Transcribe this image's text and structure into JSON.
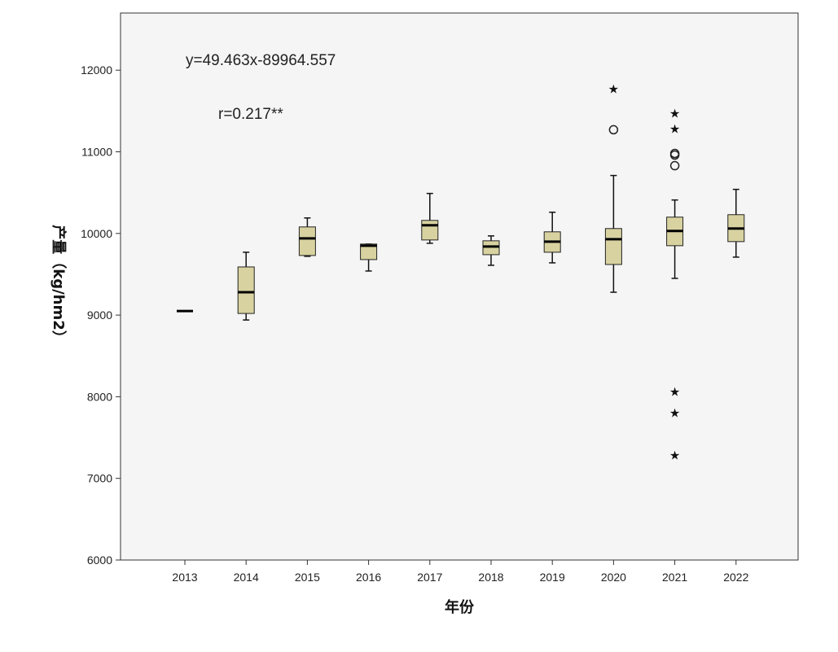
{
  "chart_data": {
    "type": "box",
    "xlabel": "年份",
    "ylabel": "产量（kg/hm2）",
    "ylim": [
      6000,
      12700
    ],
    "yticks": [
      6000,
      7000,
      8000,
      9000,
      10000,
      11000,
      12000
    ],
    "grid": false,
    "background": "#f5f5f5",
    "box_fill": "#d8d2a0",
    "annotations": [
      {
        "text": "y=49.463x-89964.557"
      },
      {
        "text": "r=0.217**"
      }
    ],
    "categories": [
      "2013",
      "2014",
      "2015",
      "2016",
      "2017",
      "2018",
      "2019",
      "2020",
      "2021",
      "2022"
    ],
    "boxes": [
      {
        "year": "2013",
        "whisker_low": 9050,
        "q1": 9050,
        "median": 9050,
        "q3": 9050,
        "whisker_high": 9050,
        "outliers": [],
        "extremes": []
      },
      {
        "year": "2014",
        "whisker_low": 8940,
        "q1": 9020,
        "median": 9280,
        "q3": 9590,
        "whisker_high": 9770,
        "outliers": [],
        "extremes": []
      },
      {
        "year": "2015",
        "whisker_low": 9720,
        "q1": 9730,
        "median": 9940,
        "q3": 10080,
        "whisker_high": 10190,
        "outliers": [],
        "extremes": []
      },
      {
        "year": "2016",
        "whisker_low": 9540,
        "q1": 9680,
        "median": 9850,
        "q3": 9870,
        "whisker_high": 9870,
        "outliers": [],
        "extremes": []
      },
      {
        "year": "2017",
        "whisker_low": 9880,
        "q1": 9920,
        "median": 10100,
        "q3": 10160,
        "whisker_high": 10490,
        "outliers": [],
        "extremes": []
      },
      {
        "year": "2018",
        "whisker_low": 9610,
        "q1": 9740,
        "median": 9840,
        "q3": 9910,
        "whisker_high": 9970,
        "outliers": [],
        "extremes": []
      },
      {
        "year": "2019",
        "whisker_low": 9640,
        "q1": 9770,
        "median": 9900,
        "q3": 10020,
        "whisker_high": 10260,
        "outliers": [],
        "extremes": []
      },
      {
        "year": "2020",
        "whisker_low": 9280,
        "q1": 9620,
        "median": 9930,
        "q3": 10060,
        "whisker_high": 10710,
        "outliers": [
          11270
        ],
        "extremes": [
          11770
        ]
      },
      {
        "year": "2021",
        "whisker_low": 9450,
        "q1": 9850,
        "median": 10030,
        "q3": 10200,
        "whisker_high": 10410,
        "outliers": [
          10830,
          10960,
          10980
        ],
        "extremes": [
          11470,
          11280,
          8060,
          7800,
          7280
        ]
      },
      {
        "year": "2022",
        "whisker_low": 9710,
        "q1": 9900,
        "median": 10060,
        "q3": 10230,
        "whisker_high": 10540,
        "outliers": [],
        "extremes": []
      }
    ]
  }
}
